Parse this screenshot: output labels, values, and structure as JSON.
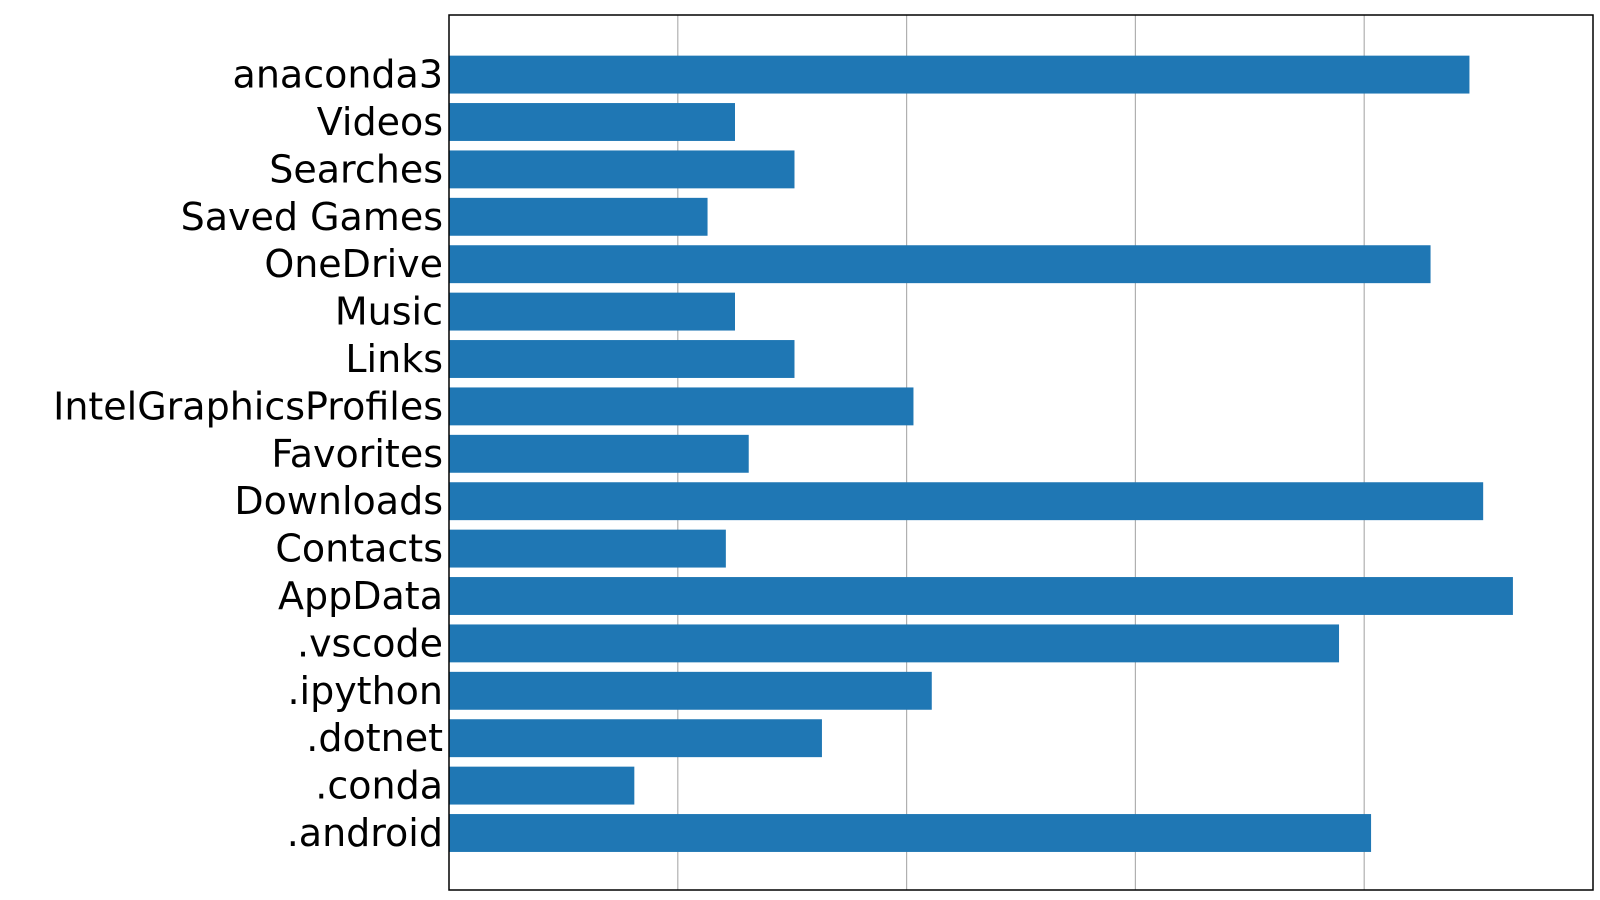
{
  "chart_data": {
    "type": "bar",
    "orientation": "horizontal",
    "title": "",
    "xlabel": "",
    "ylabel": "",
    "categories": [
      ".android",
      ".conda",
      ".dotnet",
      ".ipython",
      ".vscode",
      "AppData",
      "Contacts",
      "Downloads",
      "Favorites",
      "IntelGraphicsProfiles",
      "Links",
      "Music",
      "OneDrive",
      "Saved Games",
      "Searches",
      "Videos",
      "anaconda3"
    ],
    "values": [
      4.03,
      0.81,
      1.63,
      2.11,
      3.89,
      4.65,
      1.21,
      4.52,
      1.31,
      2.03,
      1.51,
      1.25,
      4.29,
      1.13,
      1.51,
      1.25,
      4.46
    ],
    "xlim": [
      0,
      5
    ],
    "grid_x": true,
    "grid_y": false,
    "x_tick_labels_visible": false,
    "bar_color": "#1f77b4"
  }
}
